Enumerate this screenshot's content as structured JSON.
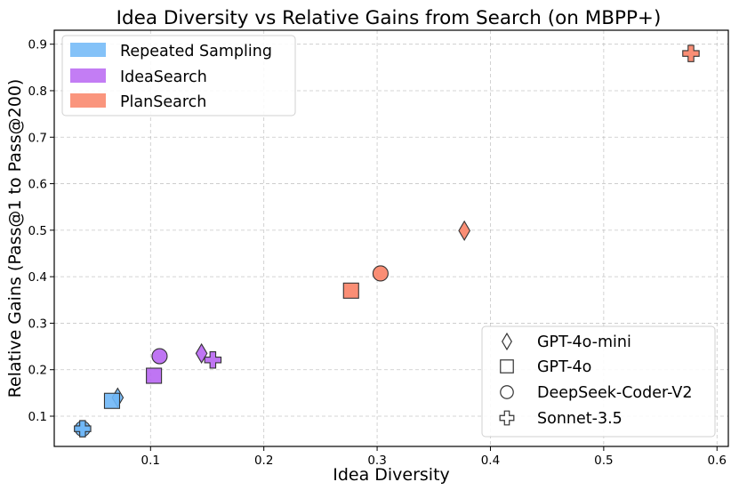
{
  "chart_data": {
    "type": "scatter",
    "title": "Idea Diversity vs Relative Gains from Search (on MBPP+)",
    "xlabel": "Idea Diversity",
    "ylabel": "Relative Gains (Pass@1 to Pass@200)",
    "xlim": [
      0.015,
      0.61
    ],
    "ylim": [
      0.035,
      0.93
    ],
    "xticks": [
      0.1,
      0.2,
      0.3,
      0.4,
      0.5,
      0.6
    ],
    "yticks": [
      0.1,
      0.2,
      0.3,
      0.4,
      0.5,
      0.6,
      0.7,
      0.8,
      0.9
    ],
    "grid": true,
    "methods": [
      {
        "name": "Repeated Sampling",
        "color": "#6fb7f7"
      },
      {
        "name": "IdeaSearch",
        "color": "#b866f2"
      },
      {
        "name": "PlanSearch",
        "color": "#f98266"
      }
    ],
    "models": [
      {
        "name": "GPT-4o-mini",
        "marker": "diamond"
      },
      {
        "name": "GPT-4o",
        "marker": "square"
      },
      {
        "name": "DeepSeek-Coder-V2",
        "marker": "circle"
      },
      {
        "name": "Sonnet-3.5",
        "marker": "plus"
      }
    ],
    "points": [
      {
        "method": "Repeated Sampling",
        "model": "GPT-4o-mini",
        "x": 0.071,
        "y": 0.14
      },
      {
        "method": "Repeated Sampling",
        "model": "GPT-4o",
        "x": 0.066,
        "y": 0.133
      },
      {
        "method": "Repeated Sampling",
        "model": "DeepSeek-Coder-V2",
        "x": 0.04,
        "y": 0.073
      },
      {
        "method": "Repeated Sampling",
        "model": "Sonnet-3.5",
        "x": 0.04,
        "y": 0.073
      },
      {
        "method": "IdeaSearch",
        "model": "GPT-4o-mini",
        "x": 0.145,
        "y": 0.235
      },
      {
        "method": "IdeaSearch",
        "model": "GPT-4o",
        "x": 0.103,
        "y": 0.187
      },
      {
        "method": "IdeaSearch",
        "model": "DeepSeek-Coder-V2",
        "x": 0.108,
        "y": 0.229
      },
      {
        "method": "IdeaSearch",
        "model": "Sonnet-3.5",
        "x": 0.155,
        "y": 0.221
      },
      {
        "method": "PlanSearch",
        "model": "GPT-4o-mini",
        "x": 0.377,
        "y": 0.499
      },
      {
        "method": "PlanSearch",
        "model": "GPT-4o",
        "x": 0.277,
        "y": 0.37
      },
      {
        "method": "PlanSearch",
        "model": "DeepSeek-Coder-V2",
        "x": 0.303,
        "y": 0.407
      },
      {
        "method": "PlanSearch",
        "model": "Sonnet-3.5",
        "x": 0.577,
        "y": 0.88
      }
    ],
    "legends": {
      "methods_position": "top-left",
      "models_position": "bottom-right"
    }
  }
}
